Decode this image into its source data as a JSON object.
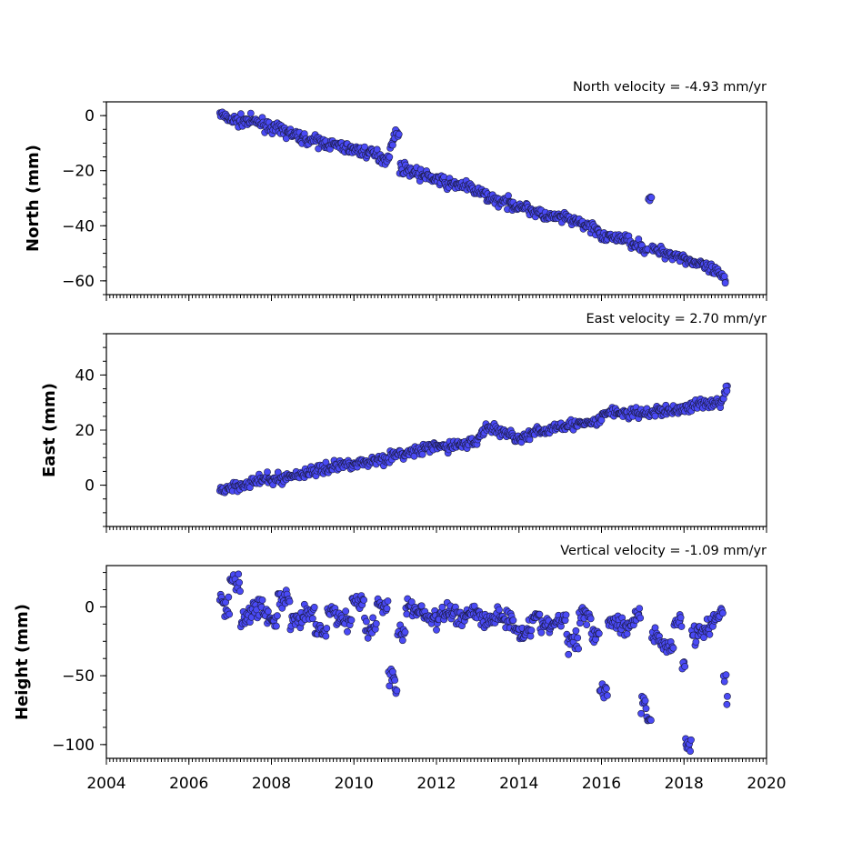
{
  "chart_data": [
    {
      "type": "scatter",
      "ylabel": "North (mm)",
      "velocity_label": "North velocity = -4.93 mm/yr",
      "xlim": [
        2004,
        2020
      ],
      "ylim": [
        -65,
        5
      ],
      "yticks": [
        0,
        -20,
        -40,
        -60
      ],
      "ytick_labels": [
        "0",
        "−20",
        "−40",
        "−60"
      ],
      "marker_color": "#4a4af5",
      "series": [
        {
          "x": [
            2006.75,
            2006.9,
            2007.2,
            2007.5,
            2007.8,
            2008.1,
            2008.4,
            2008.7,
            2009.0,
            2009.3,
            2009.6,
            2009.9,
            2010.2,
            2010.5,
            2010.8,
            2010.95,
            2011.05,
            2011.15,
            2011.4,
            2011.7,
            2012.0,
            2012.3,
            2012.6,
            2012.9,
            2013.2,
            2013.5,
            2013.8,
            2014.1,
            2014.4,
            2014.7,
            2015.0,
            2015.3,
            2015.6,
            2015.9,
            2016.0,
            2016.3,
            2016.6,
            2016.9,
            2017.1,
            2017.15,
            2017.3,
            2017.6,
            2017.9,
            2018.2,
            2018.5,
            2018.8,
            2019.0
          ],
          "y": [
            1,
            -1,
            -2,
            -2,
            -3,
            -5,
            -6,
            -8,
            -9,
            -10,
            -11,
            -12,
            -13,
            -14,
            -16,
            -9,
            -6,
            -19,
            -20,
            -22,
            -23,
            -25,
            -25,
            -27,
            -29,
            -31,
            -32,
            -33,
            -35,
            -37,
            -37,
            -38,
            -40,
            -41,
            -45,
            -44,
            -45,
            -47,
            -49,
            -30,
            -49,
            -50,
            -51,
            -53,
            -55,
            -57,
            -60
          ]
        }
      ]
    },
    {
      "type": "scatter",
      "ylabel": "East (mm)",
      "velocity_label": "East velocity = 2.70 mm/yr",
      "xlim": [
        2004,
        2020
      ],
      "ylim": [
        -15,
        55
      ],
      "yticks": [
        40,
        20,
        0
      ],
      "ytick_labels": [
        "40",
        "20",
        "0"
      ],
      "marker_color": "#4a4af5",
      "series": [
        {
          "x": [
            2006.75,
            2006.9,
            2007.2,
            2007.5,
            2007.8,
            2008.1,
            2008.4,
            2008.7,
            2009.0,
            2009.3,
            2009.6,
            2009.9,
            2010.2,
            2010.5,
            2010.8,
            2011.1,
            2011.4,
            2011.7,
            2012.0,
            2012.3,
            2012.6,
            2012.9,
            2013.2,
            2013.5,
            2013.8,
            2014.1,
            2014.4,
            2014.7,
            2015.0,
            2015.3,
            2015.6,
            2015.9,
            2016.2,
            2016.5,
            2016.8,
            2017.1,
            2017.4,
            2017.7,
            2018.0,
            2018.3,
            2018.6,
            2018.9,
            2019.05
          ],
          "y": [
            -2,
            -1,
            0,
            1,
            2,
            2,
            3,
            4,
            5,
            6,
            7,
            8,
            8,
            9,
            10,
            11,
            12,
            13,
            14,
            14,
            15,
            15,
            21,
            20,
            18,
            17,
            19,
            20,
            22,
            22,
            22,
            23,
            27,
            26,
            26,
            26,
            27,
            27,
            28,
            29,
            30,
            30,
            36
          ]
        }
      ]
    },
    {
      "type": "scatter",
      "ylabel": "Height (mm)",
      "velocity_label": "Vertical velocity = -1.09 mm/yr",
      "xlim": [
        2004,
        2020
      ],
      "ylim": [
        -110,
        30
      ],
      "yticks": [
        0,
        -50,
        -100
      ],
      "ytick_labels": [
        "0",
        "−50",
        "−100"
      ],
      "marker_color": "#4a4af5",
      "series": [
        {
          "x": [
            2006.75,
            2006.9,
            2007.1,
            2007.4,
            2007.7,
            2008.0,
            2008.3,
            2008.6,
            2008.9,
            2009.2,
            2009.5,
            2009.8,
            2010.1,
            2010.4,
            2010.7,
            2010.95,
            2011.0,
            2011.1,
            2011.4,
            2011.7,
            2012.0,
            2012.3,
            2012.6,
            2012.9,
            2013.2,
            2013.5,
            2013.8,
            2014.1,
            2014.4,
            2014.7,
            2015.0,
            2015.3,
            2015.6,
            2015.9,
            2016.0,
            2016.3,
            2016.6,
            2016.9,
            2017.0,
            2017.1,
            2017.3,
            2017.6,
            2017.9,
            2018.0,
            2018.05,
            2018.3,
            2018.6,
            2018.9,
            2019.0,
            2019.05
          ],
          "y": [
            5,
            -2,
            18,
            -8,
            2,
            -10,
            5,
            -12,
            -5,
            -18,
            -4,
            -10,
            5,
            -15,
            2,
            -50,
            -60,
            -20,
            0,
            -5,
            -10,
            -3,
            -8,
            -2,
            -12,
            -5,
            -10,
            -20,
            -8,
            -15,
            -10,
            -25,
            -5,
            -20,
            -60,
            -10,
            -15,
            -5,
            -70,
            -80,
            -20,
            -30,
            -10,
            -40,
            -100,
            -20,
            -15,
            -5,
            -50,
            -65
          ]
        }
      ]
    }
  ],
  "x_axis": {
    "ticks": [
      2004,
      2006,
      2008,
      2010,
      2012,
      2014,
      2016,
      2018,
      2020
    ],
    "tick_labels": [
      "2004",
      "2006",
      "2008",
      "2010",
      "2012",
      "2014",
      "2016",
      "2018",
      "2020"
    ]
  }
}
